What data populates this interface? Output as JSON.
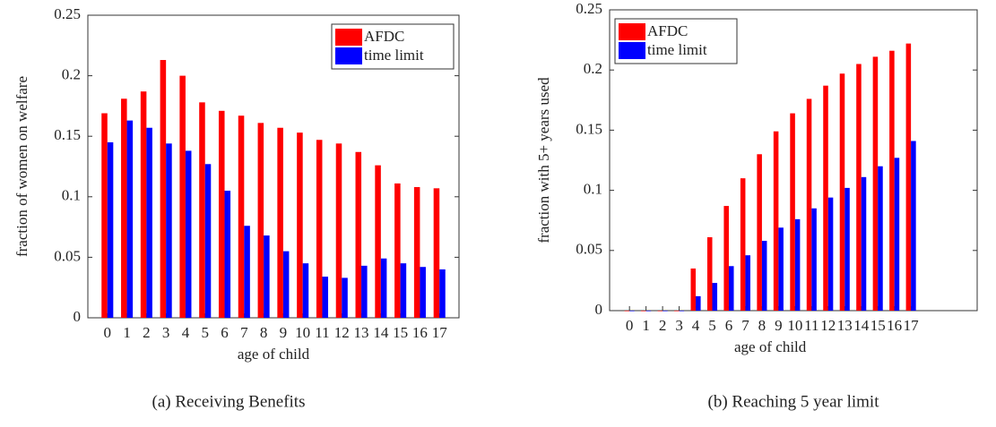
{
  "chart_data": [
    {
      "type": "bar",
      "ylabel": "fraction of women on welfare",
      "xlabel": "age of child",
      "caption": "(a) Receiving Benefits",
      "x": [
        0,
        1,
        2,
        3,
        4,
        5,
        6,
        7,
        8,
        9,
        10,
        11,
        12,
        13,
        14,
        15,
        16,
        17
      ],
      "xlim": [
        -1,
        18
      ],
      "ylim": [
        0,
        0.25
      ],
      "yticks": [
        0,
        0.05,
        0.1,
        0.15,
        0.2,
        0.25
      ],
      "legend": "upper right",
      "series": [
        {
          "name": "AFDC",
          "color": "#ff0000",
          "values": [
            0.169,
            0.181,
            0.187,
            0.213,
            0.2,
            0.178,
            0.171,
            0.167,
            0.161,
            0.157,
            0.153,
            0.147,
            0.144,
            0.137,
            0.126,
            0.111,
            0.108,
            0.107
          ]
        },
        {
          "name": "time limit",
          "color": "#0000ff",
          "values": [
            0.145,
            0.163,
            0.157,
            0.144,
            0.138,
            0.127,
            0.105,
            0.076,
            0.068,
            0.055,
            0.045,
            0.034,
            0.033,
            0.043,
            0.049,
            0.045,
            0.042,
            0.04
          ]
        }
      ]
    },
    {
      "type": "bar",
      "ylabel": "fraction with 5+ years used",
      "xlabel": "age of child",
      "caption": "(b) Reaching 5 year limit",
      "x": [
        0,
        1,
        2,
        3,
        4,
        5,
        6,
        7,
        8,
        9,
        10,
        11,
        12,
        13,
        14,
        15,
        16,
        17
      ],
      "xlim": [
        -1.2,
        21
      ],
      "ylim": [
        0,
        0.25
      ],
      "yticks": [
        0,
        0.05,
        0.1,
        0.15,
        0.2,
        0.25
      ],
      "legend": "upper left",
      "series": [
        {
          "name": "AFDC",
          "color": "#ff0000",
          "values": [
            0,
            0,
            0,
            0,
            0.035,
            0.061,
            0.087,
            0.11,
            0.13,
            0.149,
            0.164,
            0.176,
            0.187,
            0.197,
            0.205,
            0.211,
            0.216,
            0.222
          ]
        },
        {
          "name": "time limit",
          "color": "#0000ff",
          "values": [
            0,
            0,
            0,
            0,
            0.012,
            0.023,
            0.037,
            0.046,
            0.058,
            0.069,
            0.076,
            0.085,
            0.094,
            0.102,
            0.111,
            0.12,
            0.127,
            0.141
          ]
        }
      ]
    }
  ]
}
